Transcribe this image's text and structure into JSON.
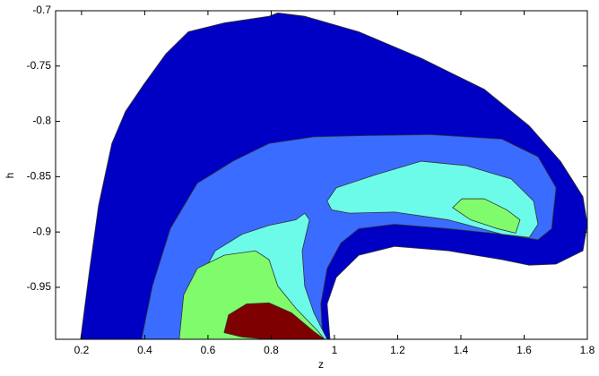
{
  "chart_data": {
    "type": "contour",
    "xlabel": "z",
    "ylabel": "h",
    "xlim": [
      0.118,
      1.8
    ],
    "ylim": [
      -0.997,
      -0.7
    ],
    "xticks": [
      0.2,
      0.4,
      0.6,
      0.8,
      1,
      1.2,
      1.4,
      1.6,
      1.8
    ],
    "yticks": [
      -0.95,
      -0.9,
      -0.85,
      -0.8,
      -0.75,
      -0.7
    ],
    "series": [
      {
        "color": "#0000c4",
        "x": [
          0.197,
          0.226,
          0.254,
          0.296,
          0.339,
          0.396,
          0.467,
          0.538,
          0.651,
          0.793,
          0.821,
          0.906,
          1.077,
          1.275,
          1.474,
          1.616,
          1.715,
          1.786,
          1.8,
          1.786,
          1.701,
          1.616,
          1.53,
          1.36,
          1.19,
          1.077,
          1.006,
          0.977,
          0.986
        ],
        "y": [
          -0.997,
          -0.933,
          -0.876,
          -0.82,
          -0.791,
          -0.767,
          -0.739,
          -0.719,
          -0.711,
          -0.705,
          -0.702,
          -0.705,
          -0.719,
          -0.743,
          -0.771,
          -0.804,
          -0.836,
          -0.868,
          -0.893,
          -0.917,
          -0.929,
          -0.93,
          -0.925,
          -0.917,
          -0.913,
          -0.921,
          -0.941,
          -0.965,
          -0.997
        ]
      },
      {
        "color": "#3a6cff",
        "x": [
          0.39,
          0.424,
          0.481,
          0.566,
          0.679,
          0.793,
          0.935,
          1.077,
          1.304,
          1.53,
          1.644,
          1.701,
          1.687,
          1.644,
          1.53,
          1.36,
          1.19,
          1.077,
          1.02,
          0.977,
          0.957,
          0.963
        ],
        "y": [
          -0.997,
          -0.949,
          -0.897,
          -0.856,
          -0.836,
          -0.82,
          -0.814,
          -0.813,
          -0.812,
          -0.816,
          -0.832,
          -0.86,
          -0.897,
          -0.907,
          -0.902,
          -0.897,
          -0.893,
          -0.897,
          -0.91,
          -0.933,
          -0.965,
          -0.997
        ]
      },
      {
        "color": "#6cfbe8",
        "x": [
          0.543,
          0.56,
          0.623,
          0.708,
          0.793,
          0.878,
          0.906,
          0.921,
          0.898,
          0.906,
          0.935,
          0.977
        ],
        "y": [
          -0.997,
          -0.949,
          -0.917,
          -0.902,
          -0.894,
          -0.889,
          -0.883,
          -0.889,
          -0.917,
          -0.949,
          -0.973,
          -0.997
        ]
      },
      {
        "color": "#6cfbe8",
        "x": [
          0.977,
          1.006,
          1.133,
          1.275,
          1.417,
          1.559,
          1.63,
          1.644,
          1.616,
          1.53,
          1.36,
          1.19,
          1.048,
          0.991
        ],
        "y": [
          -0.872,
          -0.86,
          -0.848,
          -0.836,
          -0.84,
          -0.852,
          -0.872,
          -0.893,
          -0.905,
          -0.902,
          -0.889,
          -0.882,
          -0.883,
          -0.88
        ]
      },
      {
        "color": "#80fb6c",
        "x": [
          0.509,
          0.523,
          0.566,
          0.651,
          0.75,
          0.793,
          0.821,
          0.878,
          0.949,
          0.969
        ],
        "y": [
          -0.997,
          -0.957,
          -0.933,
          -0.921,
          -0.917,
          -0.925,
          -0.949,
          -0.969,
          -0.99,
          -0.997
        ]
      },
      {
        "color": "#80fb6c",
        "x": [
          1.374,
          1.403,
          1.474,
          1.545,
          1.587,
          1.573,
          1.516,
          1.431
        ],
        "y": [
          -0.878,
          -0.87,
          -0.87,
          -0.88,
          -0.889,
          -0.901,
          -0.897,
          -0.889
        ]
      },
      {
        "color": "#7f0000",
        "x": [
          0.651,
          0.665,
          0.722,
          0.793,
          0.864,
          0.935,
          0.969,
          0.793,
          0.708
        ],
        "y": [
          -0.991,
          -0.975,
          -0.965,
          -0.964,
          -0.973,
          -0.99,
          -0.997,
          -0.997,
          -0.995
        ]
      }
    ]
  }
}
